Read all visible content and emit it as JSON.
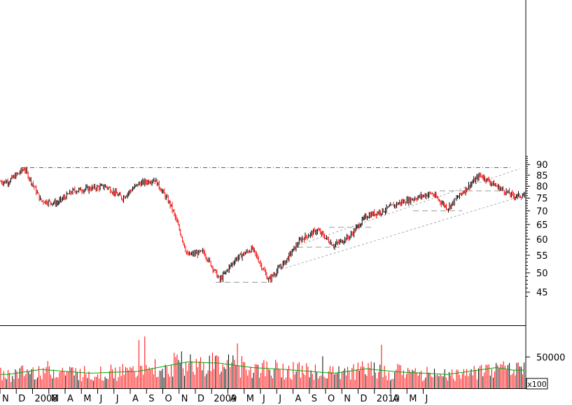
{
  "chart_data": [
    {
      "type": "candlestick",
      "title": "",
      "y_scale": "log",
      "ylim": [
        42.5,
        96
      ],
      "y_ticks": [
        45,
        50,
        55,
        60,
        65,
        70,
        75,
        80,
        85,
        90
      ],
      "x_month_labels": [
        "N",
        "D",
        "2008",
        "M",
        "A",
        "M",
        "J",
        "J",
        "A",
        "S",
        "O",
        "N",
        "D",
        "2009",
        "A",
        "M",
        "J",
        "J",
        "A",
        "S",
        "O",
        "N",
        "D",
        "2010",
        "A",
        "M",
        "J"
      ],
      "up_color": "#000000",
      "down_color": "#ff0000",
      "price_path": [
        {
          "x": "2007-11",
          "y": 82
        },
        {
          "x": "2007-12",
          "y": 88
        },
        {
          "x": "2008-01",
          "y": 74
        },
        {
          "x": "2008-02",
          "y": 73
        },
        {
          "x": "2008-03",
          "y": 78
        },
        {
          "x": "2008-04",
          "y": 79
        },
        {
          "x": "2008-05",
          "y": 80
        },
        {
          "x": "2008-06",
          "y": 75
        },
        {
          "x": "2008-07",
          "y": 81
        },
        {
          "x": "2008-08",
          "y": 83
        },
        {
          "x": "2008-09",
          "y": 72
        },
        {
          "x": "2008-10",
          "y": 55
        },
        {
          "x": "2008-11",
          "y": 56
        },
        {
          "x": "2008-12",
          "y": 48
        },
        {
          "x": "2009-01",
          "y": 54
        },
        {
          "x": "2009-02",
          "y": 57
        },
        {
          "x": "2009-03",
          "y": 48
        },
        {
          "x": "2009-04",
          "y": 53
        },
        {
          "x": "2009-05",
          "y": 60
        },
        {
          "x": "2009-06",
          "y": 63
        },
        {
          "x": "2009-07",
          "y": 58
        },
        {
          "x": "2009-08",
          "y": 61
        },
        {
          "x": "2009-09",
          "y": 68
        },
        {
          "x": "2009-10",
          "y": 70
        },
        {
          "x": "2009-11",
          "y": 73
        },
        {
          "x": "2009-12",
          "y": 75
        },
        {
          "x": "2010-01",
          "y": 77
        },
        {
          "x": "2010-02",
          "y": 71
        },
        {
          "x": "2010-03",
          "y": 78
        },
        {
          "x": "2010-04",
          "y": 85
        },
        {
          "x": "2010-05",
          "y": 80
        },
        {
          "x": "2010-06",
          "y": 76
        }
      ],
      "reference_lines": [
        {
          "style": "dash-dot",
          "y": 88.5
        },
        {
          "style": "dashed",
          "y": 47.5
        },
        {
          "style": "dashed",
          "y": 57.5
        },
        {
          "style": "dashed",
          "y": 64
        },
        {
          "style": "dashed",
          "y": 70
        },
        {
          "style": "dashed",
          "y": 78
        }
      ]
    },
    {
      "type": "bar",
      "ylabel": "x100",
      "y_ticks": [
        50000
      ],
      "y_max": 95000,
      "bar_color": "#ff0000",
      "moving_average_color": "#00aa00",
      "volume_path": [
        {
          "x": "2007-11",
          "y": 22000
        },
        {
          "x": "2008-01",
          "y": 30000
        },
        {
          "x": "2008-04",
          "y": 24000
        },
        {
          "x": "2008-07",
          "y": 27000
        },
        {
          "x": "2008-10",
          "y": 42000
        },
        {
          "x": "2008-12",
          "y": 40000
        },
        {
          "x": "2009-02",
          "y": 33000
        },
        {
          "x": "2009-04",
          "y": 30000
        },
        {
          "x": "2009-07",
          "y": 24000
        },
        {
          "x": "2009-09",
          "y": 31000
        },
        {
          "x": "2009-11",
          "y": 26000
        },
        {
          "x": "2010-02",
          "y": 22000
        },
        {
          "x": "2010-05",
          "y": 33000
        },
        {
          "x": "2010-06",
          "y": 29000
        }
      ]
    }
  ]
}
